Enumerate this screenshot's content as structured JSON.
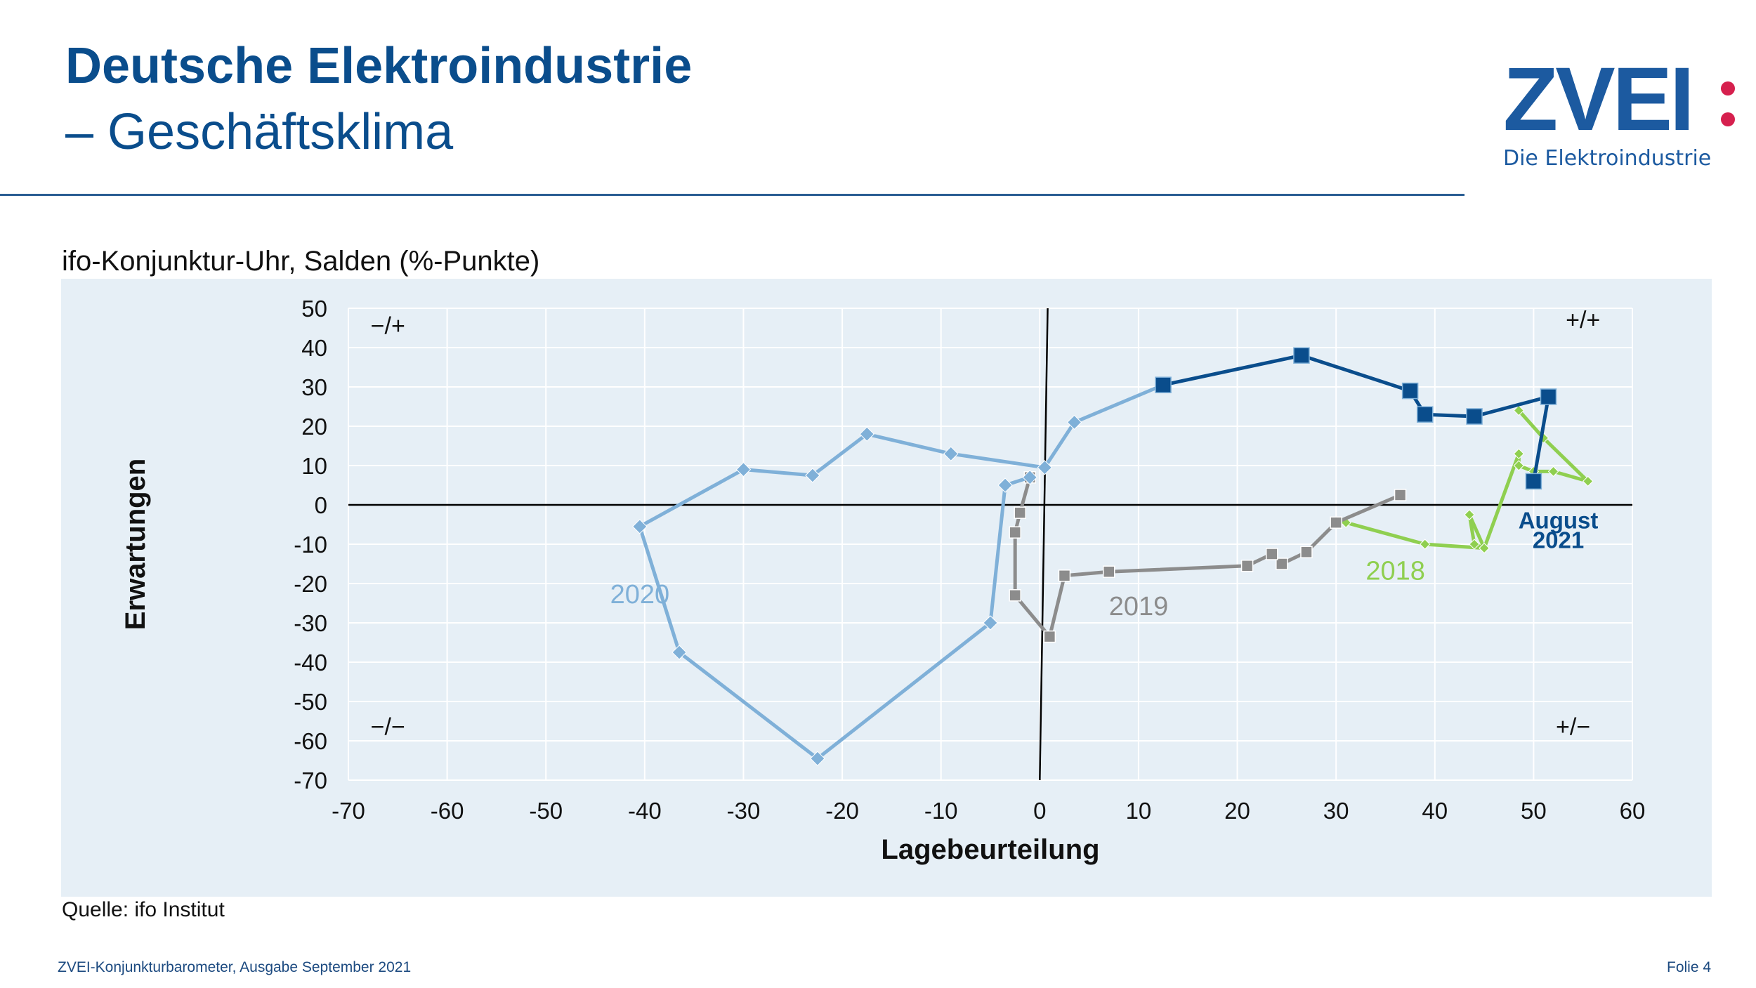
{
  "header": {
    "title": "Deutsche Elektroindustrie",
    "subtitle": "– Geschäftsklima"
  },
  "logo": {
    "wordmark": "ZVEI",
    "tagline": "Die Elektroindustrie",
    "dot_color": "#d6204e",
    "brand_color": "#1c5aa0"
  },
  "chart_title": "ifo-Konjunktur-Uhr, Salden (%-Punkte)",
  "source": "Quelle: ifo Institut",
  "footer": {
    "publication": "ZVEI-Konjunkturbarometer, Ausgabe September 2021",
    "slide": "Folie 4"
  },
  "chart_data": {
    "type": "scatter",
    "xlabel": "Lagebeurteilung",
    "ylabel": "Erwartungen",
    "xlim": [
      -70,
      60
    ],
    "ylim": [
      -70,
      50
    ],
    "xticks": [
      -70,
      -60,
      -50,
      -40,
      -30,
      -20,
      -10,
      0,
      10,
      20,
      30,
      40,
      50,
      60
    ],
    "yticks": [
      -70,
      -60,
      -50,
      -40,
      -30,
      -20,
      -10,
      0,
      10,
      20,
      30,
      40,
      50
    ],
    "grid": true,
    "quadrant_labels": {
      "top_left": "−/+",
      "top_right": "+/+",
      "bottom_left": "−/−",
      "bottom_right": "+/−"
    },
    "series": [
      {
        "name": "2018",
        "color": "#8fcf50",
        "marker": "diamond",
        "points": [
          [
            48.5,
            24
          ],
          [
            51,
            17
          ],
          [
            55.5,
            6
          ],
          [
            52,
            8.5
          ],
          [
            50,
            8.5
          ],
          [
            48.5,
            10
          ],
          [
            48.5,
            13
          ],
          [
            45,
            -11
          ],
          [
            43.5,
            -2.5
          ],
          [
            44,
            -10
          ],
          [
            45,
            -11
          ],
          [
            39,
            -10
          ],
          [
            31,
            -4.5
          ]
        ]
      },
      {
        "name": "2019",
        "color": "#8c8c8c",
        "marker": "square",
        "points": [
          [
            36.5,
            2.5
          ],
          [
            30,
            -4.5
          ],
          [
            27,
            -12
          ],
          [
            24.5,
            -15
          ],
          [
            23.5,
            -12.5
          ],
          [
            21,
            -15.5
          ],
          [
            7,
            -17
          ],
          [
            2.5,
            -18
          ],
          [
            1,
            -33.5
          ],
          [
            -2.5,
            -23
          ],
          [
            -2.5,
            -7
          ],
          [
            -2,
            -2
          ],
          [
            -1,
            7
          ]
        ]
      },
      {
        "name": "2020",
        "color": "#7fb0d8",
        "marker": "diamond",
        "points": [
          [
            -1,
            7
          ],
          [
            -3.5,
            5
          ],
          [
            -5,
            -30
          ],
          [
            -22.5,
            -64.5
          ],
          [
            -36.5,
            -37.5
          ],
          [
            -40.5,
            -5.5
          ],
          [
            -30,
            9
          ],
          [
            -23,
            7.5
          ],
          [
            -17.5,
            18
          ],
          [
            -9,
            13
          ],
          [
            0.5,
            9.5
          ],
          [
            3.5,
            21
          ],
          [
            12.5,
            30.5
          ]
        ]
      },
      {
        "name": "2021",
        "color": "#0a4d8c",
        "marker": "square",
        "points": [
          [
            12.5,
            30.5
          ],
          [
            26.5,
            38
          ],
          [
            37.5,
            29
          ],
          [
            39,
            23
          ],
          [
            44,
            22.5
          ],
          [
            51.5,
            27.5
          ],
          [
            50,
            6
          ]
        ]
      }
    ],
    "annotations": [
      {
        "text": "2020",
        "x": -43.5,
        "y": -25
      },
      {
        "text": "2019",
        "x": 7,
        "y": -28
      },
      {
        "text": "2018",
        "x": 33,
        "y": -19
      },
      {
        "text": "August",
        "x": 52.5,
        "y": -6
      },
      {
        "text": "2021",
        "x": 52.5,
        "y": -11
      }
    ]
  }
}
